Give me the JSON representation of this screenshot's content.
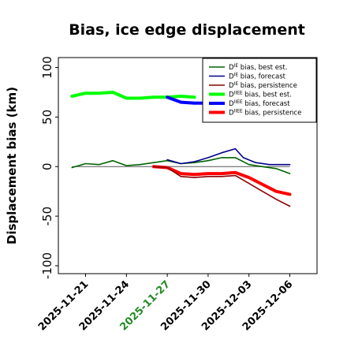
{
  "chart_data": {
    "type": "line",
    "title": "Bias, ice edge displacement",
    "ylabel": "Displacement bias (km)",
    "xlabel": "",
    "ylim": [
      -108,
      110
    ],
    "yticks": [
      100,
      50,
      0,
      -50,
      -100
    ],
    "xlim": [
      "2025-11-19T00:00",
      "2025-12-08T00:00"
    ],
    "xticks": [
      "2025-11-21",
      "2025-11-24",
      "2025-11-27",
      "2025-11-30",
      "2025-12-03",
      "2025-12-06"
    ],
    "highlighted_xtick": "2025-11-27",
    "highlight_color": "#228b22",
    "zero_line": true,
    "grid": false,
    "legend_position": "top-right",
    "legend": [
      "D<sup>IE</sup> bias, best est.",
      "D<sup>IE</sup> bias, forecast",
      "D<sup>IE</sup> bias, persistence",
      "D<sup>IIEE</sup> bias, best est.",
      "D<sup>IIEE</sup> bias, forecast",
      "D<sup>IIEE</sup> bias, persistence"
    ],
    "series": [
      {
        "name": "D<sup>IE</sup> bias, best est.",
        "color": "#006400",
        "width": "thin",
        "points": [
          [
            "2025-11-20T00:00",
            -1
          ],
          [
            "2025-11-21T00:00",
            3
          ],
          [
            "2025-11-22T00:00",
            2
          ],
          [
            "2025-11-23T00:00",
            6
          ],
          [
            "2025-11-24T00:00",
            1
          ],
          [
            "2025-11-25T00:00",
            2
          ],
          [
            "2025-11-26T00:00",
            4
          ],
          [
            "2025-11-27T00:00",
            6
          ],
          [
            "2025-11-28T00:00",
            3
          ],
          [
            "2025-11-29T00:00",
            4
          ],
          [
            "2025-11-30T00:00",
            6
          ],
          [
            "2025-12-01T00:00",
            9
          ],
          [
            "2025-12-02T00:00",
            9
          ],
          [
            "2025-12-03T00:00",
            2
          ],
          [
            "2025-12-04T00:00",
            0
          ],
          [
            "2025-12-05T00:00",
            -2
          ],
          [
            "2025-12-06T00:00",
            -7
          ]
        ]
      },
      {
        "name": "D<sup>IE</sup> bias, forecast",
        "color": "#00008b",
        "width": "thin",
        "points": [
          [
            "2025-11-27T00:00",
            7
          ],
          [
            "2025-11-28T00:00",
            3
          ],
          [
            "2025-11-29T00:00",
            5
          ],
          [
            "2025-11-30T00:00",
            9
          ],
          [
            "2025-12-01T00:00",
            14
          ],
          [
            "2025-12-02T00:00",
            18
          ],
          [
            "2025-12-02T14:00",
            9
          ],
          [
            "2025-12-03T12:00",
            4
          ],
          [
            "2025-12-04T12:00",
            2
          ],
          [
            "2025-12-06T00:00",
            2
          ]
        ]
      },
      {
        "name": "D<sup>IE</sup> bias, persistence",
        "color": "#8b0000",
        "width": "thin",
        "points": [
          [
            "2025-11-26T00:00",
            0
          ],
          [
            "2025-11-27T00:00",
            -1
          ],
          [
            "2025-11-28T00:00",
            -10
          ],
          [
            "2025-11-29T00:00",
            -11
          ],
          [
            "2025-11-30T00:00",
            -10
          ],
          [
            "2025-12-01T00:00",
            -10
          ],
          [
            "2025-12-02T00:00",
            -9
          ],
          [
            "2025-12-03T00:00",
            -17
          ],
          [
            "2025-12-04T00:00",
            -25
          ],
          [
            "2025-12-05T00:00",
            -33
          ],
          [
            "2025-12-06T00:00",
            -40
          ]
        ]
      },
      {
        "name": "D<sup>IIEE</sup> bias, best est.",
        "color": "#00ff00",
        "width": "thick",
        "points": [
          [
            "2025-11-20T00:00",
            71
          ],
          [
            "2025-11-21T00:00",
            74
          ],
          [
            "2025-11-22T00:00",
            74
          ],
          [
            "2025-11-23T00:00",
            75
          ],
          [
            "2025-11-24T00:00",
            69
          ],
          [
            "2025-11-25T00:00",
            69
          ],
          [
            "2025-11-26T00:00",
            70
          ],
          [
            "2025-11-27T00:00",
            70
          ],
          [
            "2025-11-28T00:00",
            71
          ],
          [
            "2025-11-29T00:00",
            70
          ]
        ]
      },
      {
        "name": "D<sup>IIEE</sup> bias, forecast",
        "color": "#0000ff",
        "width": "thick",
        "points": [
          [
            "2025-11-27T00:00",
            70
          ],
          [
            "2025-11-28T00:00",
            65
          ],
          [
            "2025-11-29T00:00",
            64
          ],
          [
            "2025-11-30T00:00",
            64
          ]
        ]
      },
      {
        "name": "D<sup>IIEE</sup> bias, persistence",
        "color": "#ff0000",
        "width": "thick",
        "points": [
          [
            "2025-11-26T00:00",
            0
          ],
          [
            "2025-11-27T00:00",
            -1
          ],
          [
            "2025-11-28T00:00",
            -7
          ],
          [
            "2025-11-29T00:00",
            -8
          ],
          [
            "2025-11-30T00:00",
            -7
          ],
          [
            "2025-12-01T00:00",
            -7
          ],
          [
            "2025-12-02T00:00",
            -6
          ],
          [
            "2025-12-03T00:00",
            -11
          ],
          [
            "2025-12-04T00:00",
            -18
          ],
          [
            "2025-12-05T00:00",
            -25
          ],
          [
            "2025-12-06T00:00",
            -28
          ]
        ]
      }
    ]
  }
}
